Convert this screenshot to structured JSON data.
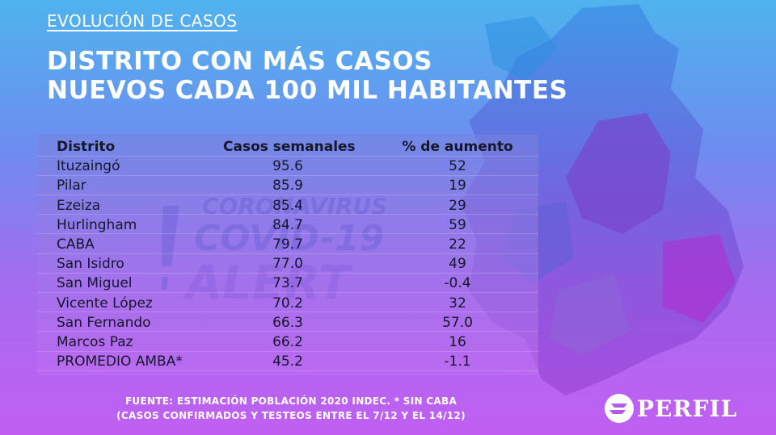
{
  "kicker": "EVOLUCIÓN DE CASOS",
  "title_line1": "DISTRITO CON MÁS CASOS",
  "title_line2": "NUEVOS CADA 100 MIL HABITANTES",
  "table": {
    "headers": [
      "Distrito",
      "Casos semanales",
      "% de aumento"
    ],
    "rows": [
      [
        "Ituzaingó",
        "95.6",
        "52"
      ],
      [
        "Pilar",
        "85.9",
        "19"
      ],
      [
        "Ezeiza",
        "85.4",
        "29"
      ],
      [
        "Hurlingham",
        "84.7",
        "59"
      ],
      [
        "CABA",
        "79.7",
        "22"
      ],
      [
        "San Isidro",
        "77.0",
        "49"
      ],
      [
        "San Miguel",
        "73.7",
        "-0.4"
      ],
      [
        "Vicente López",
        "70.2",
        "32"
      ],
      [
        "San Fernando",
        "66.3",
        "57.0"
      ],
      [
        "Marcos Paz",
        "66.2",
        "16"
      ],
      [
        "PROMEDIO AMBA*",
        "45.2",
        "-1.1"
      ]
    ]
  },
  "watermark": {
    "line1": "CORONAVIRUS",
    "line2": "COVID-19",
    "line3": "ALERT"
  },
  "footer_line1": "FUENTE: ESTIMACIÓN POBLACIÓN 2020 INDEC. * SIN CABA",
  "footer_line2": "(CASOS CONFIRMADOS Y TESTEOS ENTRE EL 7/12 Y EL 14/12)",
  "logo": "PERFIL",
  "colors": {
    "text_dark": "#15172a",
    "bg_top": "#4fb3ee",
    "bg_bottom": "#c05ff2"
  }
}
